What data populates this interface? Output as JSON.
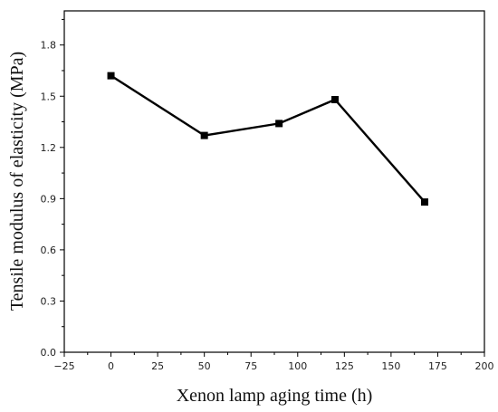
{
  "chart_data": {
    "type": "line",
    "title": "",
    "xlabel": "Xenon lamp aging time (h)",
    "ylabel": "Tensile modulus of elasticity (MPa)",
    "xlim": [
      -25,
      200
    ],
    "ylim": [
      0.0,
      2.0
    ],
    "xticks": [
      -25,
      0,
      25,
      50,
      75,
      100,
      125,
      150,
      175,
      200
    ],
    "xtick_labels": [
      "−25",
      "0",
      "25",
      "50",
      "75",
      "100",
      "125",
      "150",
      "175",
      "200"
    ],
    "yticks": [
      0.0,
      0.3,
      0.6,
      0.9,
      1.2,
      1.5,
      1.8
    ],
    "ytick_labels": [
      "0.0",
      "0.3",
      "0.6",
      "0.9",
      "1.2",
      "1.5",
      "1.8"
    ],
    "grid": false,
    "legend": false,
    "series": [
      {
        "x": [
          0,
          50,
          90,
          120,
          168
        ],
        "y": [
          1.62,
          1.27,
          1.34,
          1.48,
          0.88
        ],
        "color": "#000000",
        "marker": "square"
      }
    ]
  }
}
